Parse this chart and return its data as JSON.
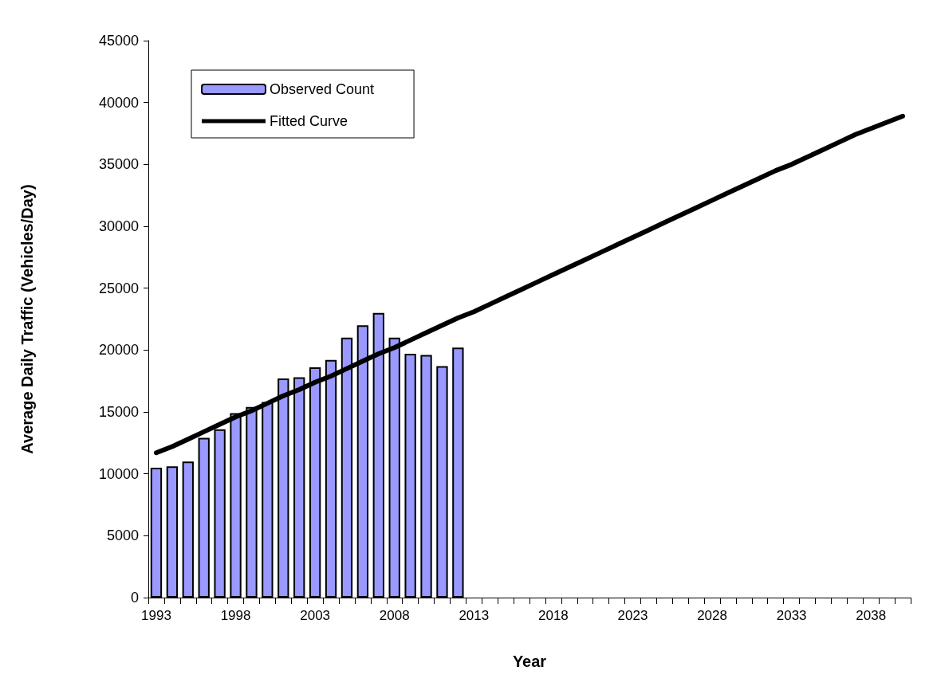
{
  "chart_data": {
    "type": "bar",
    "xlabel": "Year",
    "ylabel": "Average Daily Traffic (Vehicles/Day)",
    "categories": [
      "1993",
      null,
      null,
      null,
      null,
      "1998",
      null,
      null,
      null,
      null,
      "2003",
      null,
      null,
      null,
      null,
      "2008",
      null,
      null,
      null,
      null,
      "2013",
      null,
      null,
      null,
      null,
      "2018",
      null,
      null,
      null,
      null,
      "2023",
      null,
      null,
      null,
      null,
      "2028",
      null,
      null,
      null,
      null,
      "2033",
      null,
      null,
      null,
      null,
      "2038",
      null,
      null
    ],
    "series": [
      {
        "name": "Observed Count",
        "color": "#9999ff",
        "values": [
          10500,
          10600,
          11000,
          12900,
          13600,
          14900,
          15400,
          15800,
          17700,
          17800,
          18600,
          19200,
          21000,
          22000,
          23000,
          21000,
          19700,
          19600,
          18700,
          20200,
          null,
          null,
          null,
          null,
          null,
          null,
          null,
          null,
          null,
          null,
          null,
          null,
          null,
          null,
          null,
          null,
          null,
          null,
          null,
          null,
          null,
          null,
          null,
          null,
          null,
          null,
          null,
          null
        ]
      },
      {
        "name": "Fitted Curve",
        "type": "line",
        "color": "#000000",
        "marker": "none",
        "values": [
          11700,
          12200,
          12800,
          13400,
          14000,
          14600,
          15100,
          15700,
          16300,
          16800,
          17400,
          17900,
          18500,
          19100,
          19700,
          20200,
          20800,
          21400,
          22000,
          22600,
          23100,
          23700,
          24300,
          24900,
          25500,
          26100,
          26700,
          27300,
          27900,
          28500,
          29100,
          29700,
          30300,
          30900,
          31500,
          32100,
          32700,
          33300,
          33900,
          34500,
          35000,
          35600,
          36200,
          36800,
          37400,
          37900,
          38400,
          38900
        ]
      }
    ],
    "ylim": [
      0,
      45000
    ],
    "yticks": [
      0,
      5000,
      10000,
      15000,
      20000,
      25000,
      30000,
      35000,
      40000,
      45000
    ],
    "grid": false,
    "legend": "top left"
  }
}
